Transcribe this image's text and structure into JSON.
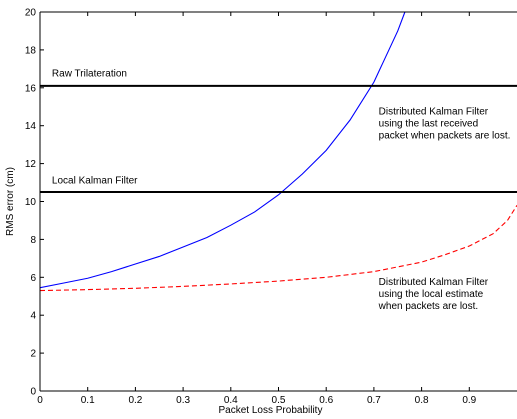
{
  "chart_data": {
    "type": "line",
    "xlabel": "Packet Loss Probability",
    "ylabel": "RMS error (cm)",
    "xlim": [
      0,
      1
    ],
    "ylim": [
      0,
      20
    ],
    "x_ticks": [
      0,
      0.1,
      0.2,
      0.3,
      0.4,
      0.5,
      0.6,
      0.7,
      0.8,
      0.9
    ],
    "y_ticks": [
      0,
      2,
      4,
      6,
      8,
      10,
      12,
      14,
      16,
      18,
      20
    ],
    "grid": false,
    "legend": "none",
    "series": [
      {
        "color": "#0000ff",
        "style": "solid",
        "x": [
          0,
          0.05,
          0.1,
          0.15,
          0.2,
          0.25,
          0.3,
          0.35,
          0.4,
          0.45,
          0.5,
          0.55,
          0.6,
          0.65,
          0.7,
          0.75,
          0.765
        ],
        "y": [
          5.45,
          5.7,
          5.95,
          6.3,
          6.7,
          7.1,
          7.6,
          8.1,
          8.75,
          9.45,
          10.35,
          11.45,
          12.7,
          14.3,
          16.3,
          19.0,
          20.0
        ]
      },
      {
        "color": "#ff0000",
        "style": "dashed",
        "x": [
          0,
          0.1,
          0.2,
          0.3,
          0.4,
          0.5,
          0.6,
          0.7,
          0.8,
          0.85,
          0.9,
          0.95,
          0.98,
          1.0
        ],
        "y": [
          5.3,
          5.35,
          5.42,
          5.52,
          5.65,
          5.8,
          6.0,
          6.3,
          6.8,
          7.2,
          7.65,
          8.3,
          9.0,
          9.8
        ]
      },
      {
        "color": "#000000",
        "style": "solid",
        "x": [
          0,
          1
        ],
        "y": [
          16.1,
          16.1
        ]
      },
      {
        "color": "#000000",
        "style": "solid",
        "x": [
          0,
          1
        ],
        "y": [
          10.5,
          10.5
        ]
      }
    ],
    "annotations": [
      {
        "lines": [
          "Raw Trilateration"
        ],
        "x": 0.025,
        "y": 16.6
      },
      {
        "lines": [
          "Local Kalman Filter"
        ],
        "x": 0.025,
        "y": 10.95
      },
      {
        "lines": [
          "Distributed Kalman Filter",
          "using the last received",
          "packet when packets are lost."
        ],
        "x": 0.71,
        "y": 14.6
      },
      {
        "lines": [
          "Distributed Kalman Filter",
          "using the local estimate",
          "when packets are lost."
        ],
        "x": 0.71,
        "y": 5.6
      }
    ]
  }
}
